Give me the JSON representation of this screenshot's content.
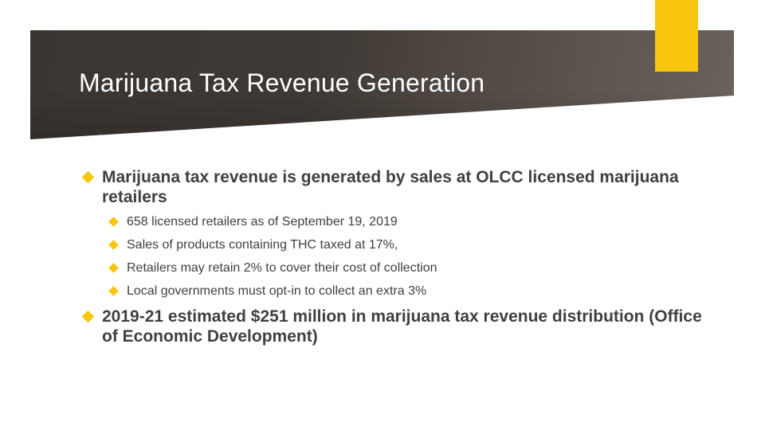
{
  "slide": {
    "title": "Marijuana Tax Revenue Generation",
    "bullets": [
      {
        "text": "Marijuana tax revenue is generated by sales at OLCC licensed marijuana retailers",
        "sub": [
          "658 licensed retailers as of September 19, 2019",
          "Sales of products containing THC taxed at 17%,",
          "Retailers may retain 2% to cover their cost of collection",
          "Local governments must opt-in to collect an extra 3%"
        ]
      },
      {
        "text": "2019-21 estimated $251 million in marijuana tax revenue distribution (Office of Economic Development)"
      }
    ]
  },
  "colors": {
    "title_band": "#3b3531",
    "accent": "#f9c50f",
    "body_text": "#404040",
    "title_text": "#ffffff"
  },
  "icons": {
    "bullet": "diamond-bullet-icon"
  }
}
